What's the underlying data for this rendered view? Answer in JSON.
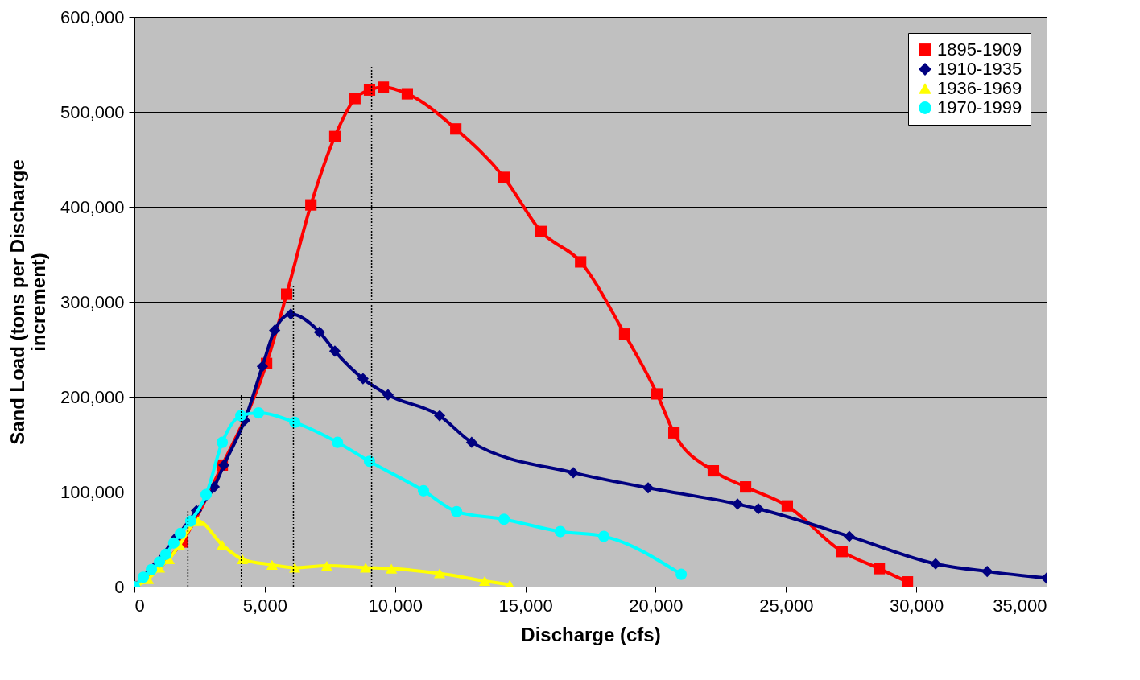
{
  "chart_data": {
    "type": "line",
    "xlabel": "Discharge (cfs)",
    "ylabel": "Sand Load (tons per Discharge increment)",
    "xlim": [
      0,
      35000
    ],
    "xticks": [
      0,
      {
        "value": 5000,
        "label": "5,000"
      },
      {
        "value": 10000,
        "label": "10,000"
      },
      {
        "value": 15000,
        "label": "15,000"
      },
      {
        "value": 20000,
        "label": "20,000"
      },
      {
        "value": 25000,
        "label": "25,000"
      },
      {
        "value": 30000,
        "label": "30,000"
      },
      {
        "value": 35000,
        "label": "35,000"
      }
    ],
    "ylim": [
      0,
      600000
    ],
    "yticks": [
      0,
      {
        "value": 100000,
        "label": "100,000"
      },
      {
        "value": 200000,
        "label": "200,000"
      },
      {
        "value": 300000,
        "label": "300,000"
      },
      {
        "value": 400000,
        "label": "400,000"
      },
      {
        "value": 500000,
        "label": "500,000"
      },
      {
        "value": 600000,
        "label": "600,000"
      }
    ],
    "grid": "y",
    "legend": "top right",
    "line_style": "solid",
    "series": [
      {
        "name": "1895-1909",
        "color": "#ff0000",
        "marker": "square",
        "x": [
          0,
          1820,
          3370,
          5070,
          5840,
          6770,
          7690,
          8460,
          9020,
          9550,
          10470,
          12330,
          14180,
          15600,
          17120,
          18810,
          20050,
          20700,
          22210,
          23450,
          25050,
          27150,
          28580,
          29660
        ],
        "values": [
          0,
          47000,
          128000,
          235000,
          308000,
          402000,
          474000,
          514000,
          523000,
          526000,
          519000,
          482000,
          431000,
          374000,
          342000,
          266000,
          203000,
          162000,
          122000,
          105000,
          85000,
          37000,
          19000,
          5000
        ]
      },
      {
        "name": "1910-1935",
        "color": "#000080",
        "marker": "diamond",
        "x": [
          0,
          1610,
          2380,
          3060,
          3430,
          4230,
          4910,
          5380,
          6000,
          7100,
          7690,
          8770,
          9730,
          11710,
          12940,
          16840,
          19710,
          23140,
          23940,
          27430,
          30740,
          32720,
          35000
        ],
        "values": [
          0,
          52000,
          80000,
          105000,
          128000,
          175000,
          232000,
          270000,
          287000,
          268000,
          248000,
          219000,
          202000,
          180000,
          152000,
          120000,
          104000,
          87000,
          82000,
          53000,
          24000,
          16000,
          9000
        ]
      },
      {
        "name": "1936-1969",
        "color": "#ffff00",
        "marker": "triangle",
        "x": [
          0,
          530,
          960,
          1330,
          1730,
          2440,
          3370,
          4140,
          5280,
          6150,
          7380,
          8870,
          9860,
          11710,
          13440,
          14400
        ],
        "values": [
          0,
          8000,
          20000,
          29000,
          44000,
          69000,
          44000,
          29000,
          23000,
          20000,
          22000,
          20000,
          19000,
          14000,
          6000,
          2000
        ]
      },
      {
        "name": "1970-1999",
        "color": "#00ffff",
        "marker": "circle",
        "x": [
          0,
          340,
          650,
          960,
          1200,
          1510,
          1760,
          2160,
          2750,
          3370,
          4080,
          4760,
          6150,
          7790,
          9020,
          11090,
          12360,
          14180,
          16340,
          18010,
          20980
        ],
        "values": [
          0,
          10000,
          18000,
          26000,
          34000,
          46000,
          56000,
          69000,
          97000,
          152000,
          180000,
          183000,
          173000,
          152000,
          132000,
          101000,
          79000,
          71000,
          58000,
          53000,
          13000
        ]
      },
      {
        "color": "#000000",
        "marker": "none",
        "line_style": "dotted",
        "x": [
          2050,
          2050
        ],
        "values": [
          0,
          82000
        ]
      },
      {
        "color": "#000000",
        "marker": "none",
        "line_style": "dotted",
        "x": [
          4100,
          4100
        ],
        "values": [
          0,
          203000
        ]
      },
      {
        "color": "#000000",
        "marker": "none",
        "line_style": "dotted",
        "x": [
          6100,
          6100
        ],
        "values": [
          0,
          317000
        ]
      },
      {
        "color": "#000000",
        "marker": "none",
        "line_style": "dotted",
        "x": [
          9100,
          9100
        ],
        "values": [
          0,
          548000
        ]
      }
    ]
  }
}
